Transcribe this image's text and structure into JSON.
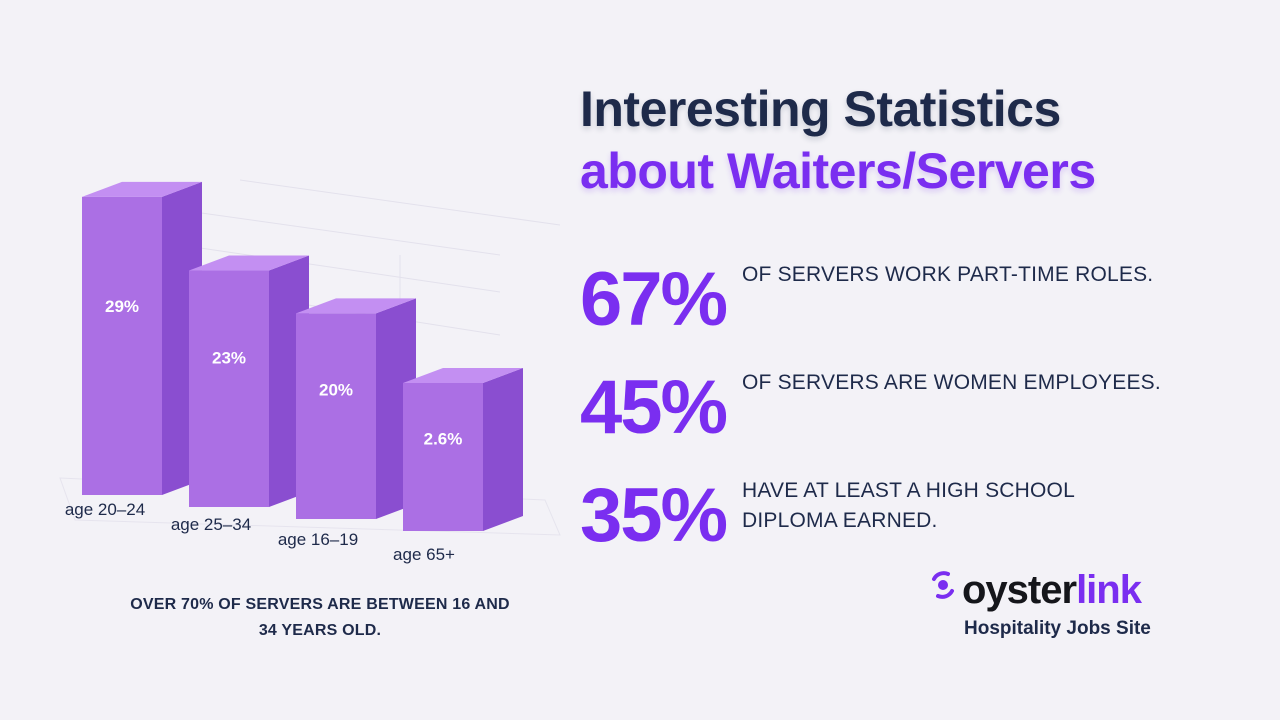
{
  "header": {
    "title_line1": "Interesting Statistics",
    "title_line2": "about Waiters/Servers"
  },
  "stats": [
    {
      "value": "67%",
      "text": "OF SERVERS WORK PART-TIME ROLES."
    },
    {
      "value": "45%",
      "text": "OF SERVERS ARE WOMEN EMPLOYEES."
    },
    {
      "value": "35%",
      "text": "HAVE AT LEAST A HIGH SCHOOL DIPLOMA EARNED."
    }
  ],
  "caption": "OVER 70% OF SERVERS ARE BETWEEN 16 AND 34 YEARS OLD.",
  "logo": {
    "brand_part1": "oyster",
    "brand_part2": "link",
    "tagline": "Hospitality Jobs Site"
  },
  "colors": {
    "navy": "#1e2a4a",
    "purple": "#7a2ef0",
    "bar_front": "#ab6fe4",
    "bar_side": "#8a4ed0",
    "bar_top": "#c38ff2"
  },
  "chart_data": {
    "type": "bar",
    "categories": [
      "age 20–24",
      "age 25–34",
      "age 16–19",
      "age 65+"
    ],
    "values": [
      29,
      23,
      20,
      2.6
    ],
    "value_labels": [
      "29%",
      "23%",
      "20%",
      "2.6%"
    ],
    "ylim": [
      0,
      32
    ],
    "grid": true
  }
}
